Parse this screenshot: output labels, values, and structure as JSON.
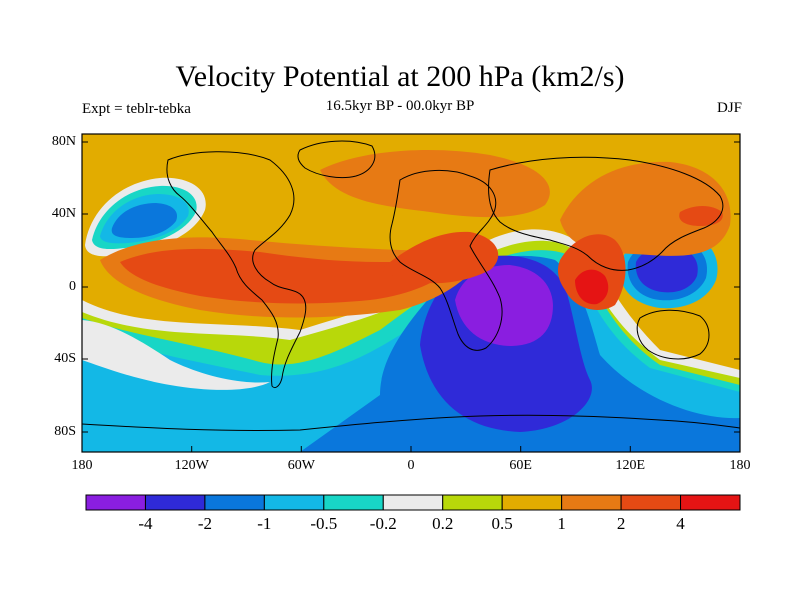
{
  "title": "Velocity Potential at 200 hPa (km2/s)",
  "subtitle": "16.5kyr BP - 00.0kyr BP",
  "left_label": "Expt = teblr-tebka",
  "right_label": "DJF",
  "axes": {
    "lat_ticks": [
      "80N",
      "40N",
      "0",
      "40S",
      "80S"
    ],
    "lon_ticks": [
      "180",
      "120W",
      "60W",
      "0",
      "60E",
      "120E",
      "180"
    ]
  },
  "colorbar": {
    "colors": [
      "#8a1ee0",
      "#2f2ad8",
      "#0a77dc",
      "#13b8e6",
      "#18d6c6",
      "#ebebeb",
      "#b8d80a",
      "#e2ac00",
      "#e77a14",
      "#e54a14",
      "#e51414"
    ],
    "labels": [
      "-4",
      "-2",
      "-1",
      "-0.5",
      "-0.2",
      "0.2",
      "0.5",
      "1",
      "2",
      "4"
    ]
  }
}
